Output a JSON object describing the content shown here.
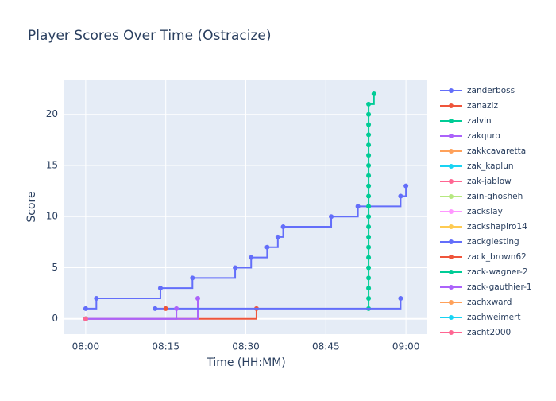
{
  "chart_data": {
    "type": "line",
    "line_shape": "hv",
    "title": "Player Scores Over Time (Ostracize)",
    "x_label": "Time (HH:MM)",
    "y_label": "Score",
    "xlim": [
      "07:56",
      "09:04"
    ],
    "xticks": [
      "08:00",
      "08:15",
      "08:30",
      "08:45",
      "09:00"
    ],
    "ylim": [
      -1.5,
      23.4
    ],
    "yticks": [
      0,
      5,
      10,
      15,
      20
    ],
    "grid": true,
    "series": [
      {
        "name": "zanderboss",
        "color": "#636efa",
        "x": [
          "08:00",
          "08:02",
          "08:14",
          "08:20",
          "08:28",
          "08:31",
          "08:34",
          "08:36",
          "08:37",
          "08:46",
          "08:51",
          "08:59",
          "09:00"
        ],
        "values": [
          1,
          2,
          3,
          4,
          5,
          6,
          7,
          8,
          9,
          10,
          11,
          12,
          13
        ]
      },
      {
        "name": "zanaziz",
        "color": "#ef553b",
        "x": [
          "08:00",
          "08:32"
        ],
        "values": [
          0,
          1
        ]
      },
      {
        "name": "zalvin",
        "color": "#00cc96",
        "x": [
          "08:53",
          "08:53",
          "08:53",
          "08:53",
          "08:53",
          "08:53",
          "08:53",
          "08:53",
          "08:53",
          "08:53",
          "08:53",
          "08:53",
          "08:53",
          "08:53",
          "08:53",
          "08:53",
          "08:53",
          "08:53",
          "08:53",
          "08:53",
          "08:53",
          "08:54"
        ],
        "values": [
          1,
          2,
          3,
          4,
          5,
          6,
          7,
          8,
          9,
          10,
          11,
          12,
          13,
          14,
          15,
          16,
          17,
          18,
          19,
          20,
          21,
          22
        ]
      },
      {
        "name": "zakquro",
        "color": "#ab63fa",
        "x": [
          "08:00",
          "08:21"
        ],
        "values": [
          0,
          2
        ]
      },
      {
        "name": "zakkcavaretta",
        "color": "#ffa15a",
        "x": [
          "08:00"
        ],
        "values": [
          0
        ]
      },
      {
        "name": "zak_kaplun",
        "color": "#19d3f3",
        "x": [
          "08:00"
        ],
        "values": [
          0
        ]
      },
      {
        "name": "zak-jablow",
        "color": "#ff6692",
        "x": [
          "08:00"
        ],
        "values": [
          0
        ]
      },
      {
        "name": "zain-ghosheh",
        "color": "#b6e880",
        "x": [
          "08:00"
        ],
        "values": [
          0
        ]
      },
      {
        "name": "zackslay",
        "color": "#ff97ff",
        "x": [
          "08:00"
        ],
        "values": [
          0
        ]
      },
      {
        "name": "zackshapiro14",
        "color": "#fecb52",
        "x": [
          "08:00"
        ],
        "values": [
          0
        ]
      },
      {
        "name": "zackgiesting",
        "color": "#636efa",
        "x": [
          "08:13",
          "08:59"
        ],
        "values": [
          1,
          2
        ]
      },
      {
        "name": "zack_brown62",
        "color": "#ef553b",
        "x": [
          "08:15"
        ],
        "values": [
          1
        ]
      },
      {
        "name": "zack-wagner-2",
        "color": "#00cc96",
        "x": [
          "08:00"
        ],
        "values": [
          0
        ]
      },
      {
        "name": "zack-gauthier-1",
        "color": "#ab63fa",
        "x": [
          "08:00",
          "08:17"
        ],
        "values": [
          0,
          1
        ]
      },
      {
        "name": "zachxward",
        "color": "#ffa15a",
        "x": [
          "08:00"
        ],
        "values": [
          0
        ]
      },
      {
        "name": "zachweimert",
        "color": "#19d3f3",
        "x": [
          "08:00"
        ],
        "values": [
          0
        ]
      },
      {
        "name": "zacht2000",
        "color": "#ff6692",
        "x": [
          "08:00"
        ],
        "values": [
          0
        ]
      }
    ]
  }
}
